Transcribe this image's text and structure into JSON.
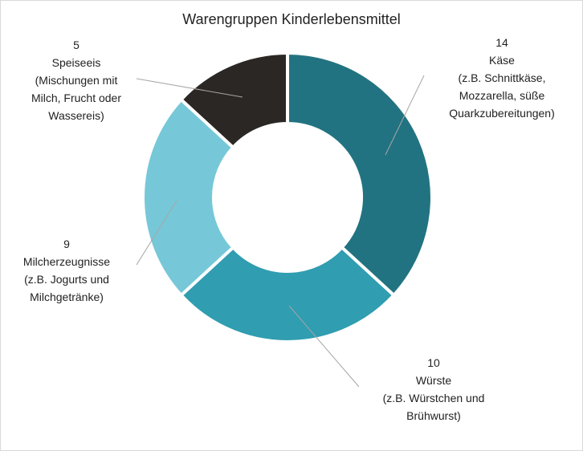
{
  "chart_data": {
    "type": "pie",
    "variant": "donut",
    "title": "Warengruppen Kinderlebensmittel",
    "categories": [
      "Käse",
      "Würste",
      "Milcherzeugnisse",
      "Speiseeis"
    ],
    "values": [
      14,
      10,
      9,
      5
    ],
    "labels": [
      {
        "value": "14",
        "lines": [
          "Käse",
          "(z.B. Schnittkäse,",
          "Mozzarella, süße",
          "Quarkzubereitungen)"
        ]
      },
      {
        "value": "10",
        "lines": [
          "Würste",
          "(z.B. Würstchen und",
          "Brühwurst)"
        ]
      },
      {
        "value": "9",
        "lines": [
          "Milcherzeugnisse",
          "(z.B. Jogurts und",
          "Milchgetränke)"
        ]
      },
      {
        "value": "5",
        "lines": [
          "Speiseeis",
          "(Mischungen mit",
          "Milch, Frucht oder",
          "Wassereis)"
        ]
      }
    ],
    "colors": [
      "#227381",
      "#309db0",
      "#76c8d8",
      "#2b2724"
    ],
    "legend": "none"
  }
}
